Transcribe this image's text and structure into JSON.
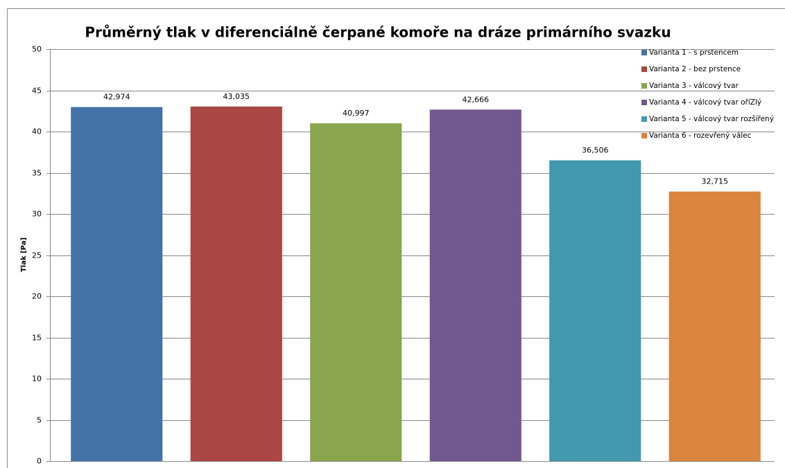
{
  "chart_data": {
    "type": "bar",
    "title": "Průměrný tlak v diferenciálně čerpané komoře na dráze primárního svazku",
    "y_label": "Tlak [Pa]",
    "series": [
      {
        "name": "Varianta 1 - s prstencem",
        "color": "#4572a7",
        "values": [
          42.974
        ],
        "value_labels": [
          "42,974"
        ]
      },
      {
        "name": "Varianta 2 - bez prstence",
        "color": "#aa4643",
        "values": [
          43.035
        ],
        "value_labels": [
          "43,035"
        ]
      },
      {
        "name": "Varianta 3 - válcový tvar",
        "color": "#89a54e",
        "values": [
          40.997
        ],
        "value_labels": [
          "40,997"
        ]
      },
      {
        "name": "Varianta 4  - válcový tvar oříZlý",
        "color": "#71588f",
        "values": [
          42.666
        ],
        "value_labels": [
          "42,666"
        ]
      },
      {
        "name": "Varianta 5 - válcový tvar rozšířený",
        "color": "#4198af",
        "values": [
          36.506
        ],
        "value_labels": [
          "36,506"
        ]
      },
      {
        "name": "Varianta 6 - rozevřený válec",
        "color": "#db843d",
        "values": [
          32.715
        ],
        "value_labels": [
          "32,715"
        ]
      }
    ],
    "ylim": [
      0,
      50
    ],
    "yticks": [
      0,
      5,
      10,
      15,
      20,
      25,
      30,
      35,
      40,
      45,
      50
    ],
    "grid": true,
    "legend": "top-right"
  }
}
